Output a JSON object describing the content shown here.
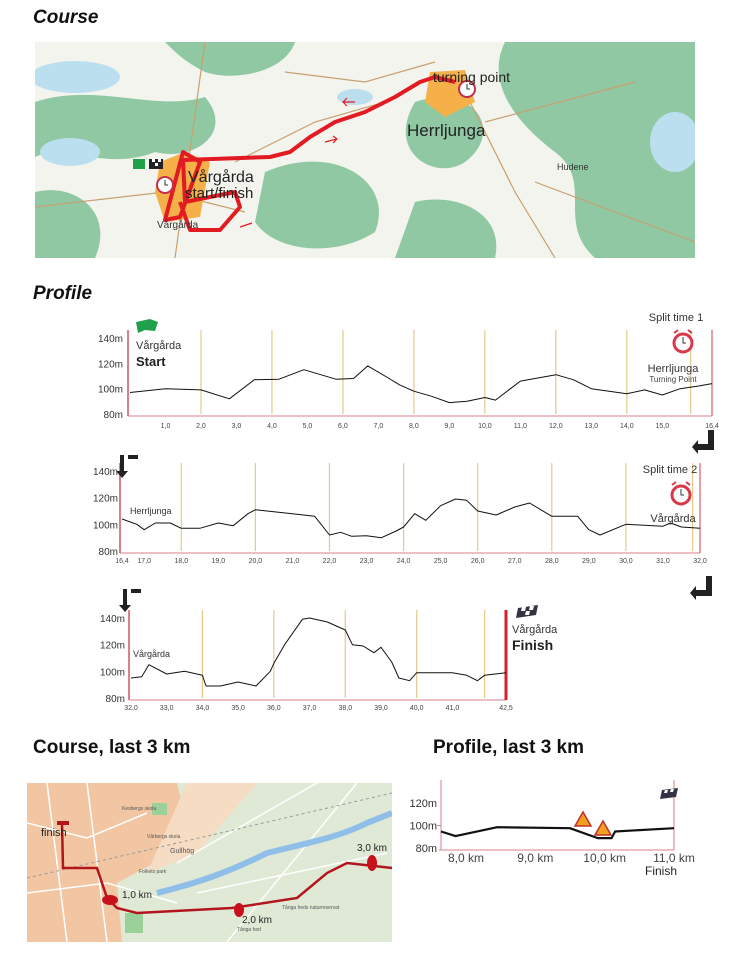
{
  "sections": {
    "course": "Course",
    "profile": "Profile",
    "course_last3": "Course, last 3 km",
    "profile_last3": "Profile, last 3 km"
  },
  "colors": {
    "route": "#e21b23",
    "grid": "#e6c98a",
    "axis": "#d9808a",
    "finish_line": "#d2232a",
    "forest": "#8fc8a3",
    "water": "#bcdff0",
    "town": "#f5b04a"
  },
  "map_course": {
    "turning_point": "turning point",
    "herrljunga": "Herrljunga",
    "vargarda_start_finish_1": "Vårgårda",
    "vargarda_start_finish_2": "start/finish",
    "vargarda_small": "Vårgårda",
    "hudene": "Hudene",
    "icons": [
      "start-flag-icon",
      "checkered-flag-icon",
      "stopwatch-icon"
    ]
  },
  "map_last3": {
    "finish": "finish",
    "km1": "1,0 km",
    "km2": "2,0 km",
    "km3": "3,0 km",
    "places": [
      "Kesbergs skola",
      "Vårbergs skola",
      "Gullhög",
      "Folkets park",
      "Tånga hed",
      "Tånga heds naturreservat"
    ]
  },
  "profile_labels": {
    "p1_start_town": "Vårgårda",
    "p1_start": "Start",
    "p1_split": "Split time 1",
    "p1_turn_town": "Herrljunga",
    "p1_turn": "Turning Point",
    "p2_town": "Herrljunga",
    "p2_split": "Split time 2",
    "p2_end_town": "Vårgårda",
    "p3_town": "Vårgårda",
    "p3_finish_town": "Vårgårda",
    "p3_finish": "Finish",
    "l3_finish": "Finish"
  },
  "chart_data": [
    {
      "type": "line",
      "xlabel": "",
      "ylabel": "",
      "xlim": [
        0,
        16.4
      ],
      "ylim": [
        80,
        140
      ],
      "yticks": [
        "80m",
        "100m",
        "120m",
        "140m"
      ],
      "xticks": [
        [
          1,
          "1,0"
        ],
        [
          2,
          "2,0"
        ],
        [
          3,
          "3,0"
        ],
        [
          4,
          "4,0"
        ],
        [
          5,
          "5,0"
        ],
        [
          6,
          "6,0"
        ],
        [
          7,
          "7,0"
        ],
        [
          8,
          "8,0"
        ],
        [
          9,
          "9,0"
        ],
        [
          10,
          "10,0"
        ],
        [
          11,
          "11,0"
        ],
        [
          12,
          "12,0"
        ],
        [
          13,
          "13,0"
        ],
        [
          14,
          "14,0"
        ],
        [
          15,
          "15,0"
        ],
        [
          16.4,
          "16,4"
        ]
      ],
      "gridlines": [
        2,
        4,
        6,
        8,
        10,
        12,
        14,
        15.8
      ],
      "x": [
        0,
        1,
        2,
        2.8,
        3.5,
        4.2,
        4.9,
        5.8,
        6.3,
        6.7,
        7.3,
        7.6,
        8,
        8.5,
        9,
        9.5,
        10,
        10.3,
        11,
        12,
        12.5,
        13,
        13.5,
        14,
        14.5,
        15,
        15.5,
        16,
        16.4
      ],
      "y": [
        97,
        100,
        99,
        92,
        107,
        107.5,
        115,
        107.5,
        108,
        118,
        108,
        103,
        98,
        94,
        89,
        90,
        93,
        91,
        106,
        111,
        107,
        100,
        98,
        96,
        99,
        95,
        100,
        102,
        104
      ]
    },
    {
      "type": "line",
      "xlabel": "",
      "ylabel": "",
      "xlim": [
        16.4,
        32.0
      ],
      "ylim": [
        80,
        140
      ],
      "yticks": [
        "80m",
        "100m",
        "120m",
        "140m"
      ],
      "xticks": [
        [
          16.4,
          "16,4"
        ],
        [
          17,
          "17,0"
        ],
        [
          18,
          "18,0"
        ],
        [
          19,
          "19,0"
        ],
        [
          20,
          "20,0"
        ],
        [
          21,
          "21,0"
        ],
        [
          22,
          "22,0"
        ],
        [
          23,
          "23,0"
        ],
        [
          24,
          "24,0"
        ],
        [
          25,
          "25,0"
        ],
        [
          26,
          "26,0"
        ],
        [
          27,
          "27,0"
        ],
        [
          28,
          "28,0"
        ],
        [
          29,
          "29,0"
        ],
        [
          30,
          "30,0"
        ],
        [
          31,
          "31,0"
        ],
        [
          32,
          "32,0"
        ]
      ],
      "gridlines": [
        18,
        20,
        22,
        24,
        26,
        28,
        30,
        31.8
      ],
      "x": [
        16.4,
        16.8,
        17,
        17.3,
        17.7,
        18,
        18.5,
        19,
        19.4,
        19.8,
        20,
        21,
        21.6,
        22,
        22.3,
        22.6,
        23,
        23.4,
        23.8,
        24,
        24.3,
        24.6,
        25,
        25.4,
        25.7,
        26,
        26.5,
        27,
        27.4,
        28,
        28.7,
        29,
        29.3,
        30,
        31,
        31.2,
        31.5,
        32
      ],
      "y": [
        104,
        100,
        96,
        101,
        101,
        97,
        97,
        101,
        99,
        108,
        111,
        108,
        106,
        92,
        94,
        91,
        91.5,
        90,
        95,
        98,
        108,
        103,
        114,
        119,
        118,
        110,
        107,
        113,
        116,
        106,
        106,
        96,
        92,
        100,
        98.5,
        101,
        98,
        97
      ]
    },
    {
      "type": "line",
      "xlabel": "",
      "ylabel": "",
      "xlim": [
        32.0,
        42.5
      ],
      "ylim": [
        80,
        140
      ],
      "yticks": [
        "80m",
        "100m",
        "120m",
        "140m"
      ],
      "xticks": [
        [
          32,
          "32,0"
        ],
        [
          33,
          "33,0"
        ],
        [
          34,
          "34,0"
        ],
        [
          35,
          "35,0"
        ],
        [
          36,
          "36,0"
        ],
        [
          37,
          "37,0"
        ],
        [
          38,
          "38,0"
        ],
        [
          39,
          "39,0"
        ],
        [
          40,
          "40,0"
        ],
        [
          41,
          "41,0"
        ],
        [
          42.5,
          "42,5"
        ]
      ],
      "gridlines": [
        34,
        36,
        38,
        40,
        41.9
      ],
      "x": [
        32,
        32.3,
        32.5,
        33,
        33.5,
        34,
        34.1,
        34.5,
        35,
        35.5,
        35.9,
        36,
        36.3,
        36.8,
        37,
        37.5,
        38,
        38.2,
        38.5,
        38.8,
        39,
        39.3,
        39.5,
        39.8,
        40,
        41,
        41.4,
        41.7,
        41.9,
        42.5
      ],
      "y": [
        95,
        96,
        105,
        98,
        100,
        97,
        89,
        89,
        92,
        89,
        100,
        106,
        120,
        139,
        140,
        137,
        131,
        120,
        119,
        114,
        118,
        107,
        95,
        93,
        99,
        99,
        97,
        93,
        97,
        99
      ]
    },
    {
      "type": "line",
      "xlabel": "",
      "ylabel": "",
      "xlim": [
        7.64,
        11.0
      ],
      "ylim": [
        80,
        120
      ],
      "yticks": [
        "80m",
        "100m",
        "120m"
      ],
      "xticks": [
        [
          8,
          "8,0 km"
        ],
        [
          9,
          "9,0 km"
        ],
        [
          10,
          "10,0 km"
        ],
        [
          11,
          "11,0 km"
        ]
      ],
      "gridlines": [],
      "x": [
        7.64,
        7.85,
        8.45,
        9.5,
        9.9,
        10.1,
        10.15,
        11.0
      ],
      "y": [
        94.7,
        90.6,
        98.5,
        97.6,
        88.8,
        88.8,
        94.7,
        97.6
      ],
      "annotations": [
        "warning-sign-icon",
        "warning-sign-icon",
        "checkered-flag-icon"
      ]
    }
  ]
}
